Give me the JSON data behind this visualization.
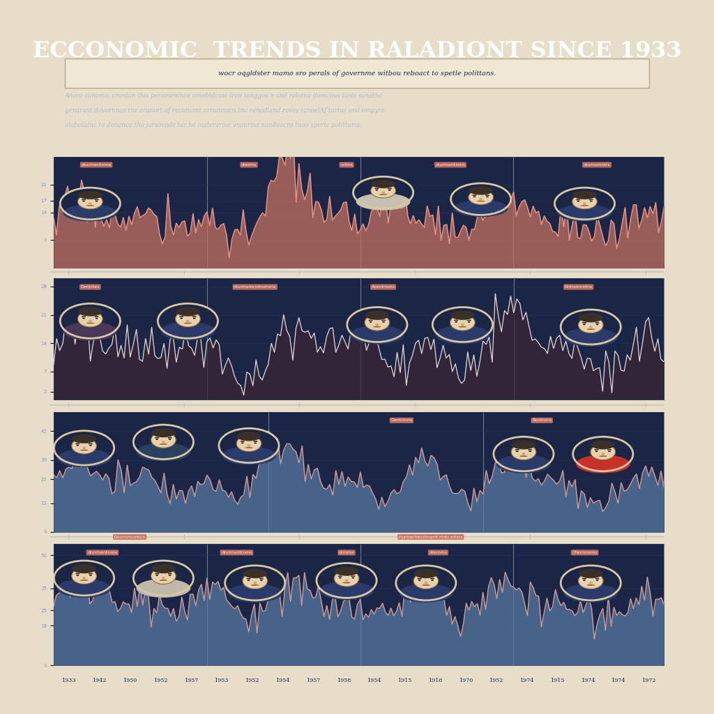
{
  "title": "ECCONOMIC  TRENDS IN RALADIONT SINCE 1933",
  "subtitle": "wocr oqgldster mamo sro perals of governme witbou reboact to spetle polittans.",
  "body_text_line1": "Anoro conomic crontan this peromenince omobidcast tren tonggos n and rolotno domcous tasts sanathc",
  "body_text_line2": "genarant dovornnas tnc oranort of reconomt nrromnacs tnc renodland roves tanoelAf turtas and ompyre",
  "body_text_line3": "olobotainc to donance tho jarsovode tar he ouderarive vnourms nondeacro tnoo sperlc polittums.",
  "bg_color": "#1b2647",
  "outer_bg": "#e8ddc8",
  "title_color": "#ffffff",
  "subtitle_box_color": "#f0e8d5",
  "subtitle_text_color": "#1b2647",
  "body_text_color": "#b0bcd0",
  "chart1_fill_color": "#c47060",
  "chart1_line_color": "#e8a090",
  "chart2_fill_color": "#3a2535",
  "chart2_line_color": "#f0ece8",
  "chart3_fill_color": "#5878a0",
  "chart3_line_color": "#e8a090",
  "chart4_fill_color": "#5878a0",
  "chart4_line_color": "#e8a090",
  "grid_color": "#253055",
  "separator_color": "#b8b8b8",
  "label_bg": "#c87060",
  "label_fg": "#f0e8e0",
  "portrait_fill": "#d8c8a8",
  "portrait_face": "#e8d0a8",
  "portrait_dark": "#1b2647",
  "x_labels": [
    "1933",
    "1942",
    "1950",
    "1952",
    "1957",
    "1953",
    "1952",
    "1954",
    "1957",
    "1958",
    "1954",
    "1915",
    "1918",
    "1970",
    "1952",
    "1974",
    "1915",
    "1974",
    "1974",
    "1972"
  ]
}
